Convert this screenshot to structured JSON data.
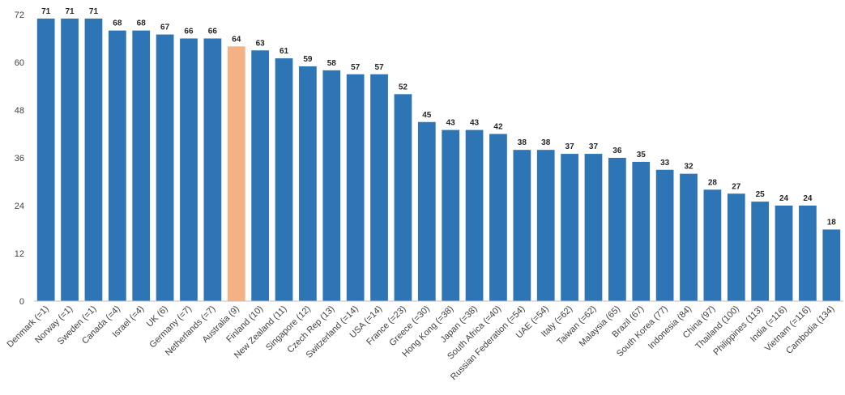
{
  "chart_data": {
    "type": "bar",
    "categories": [
      "Denmark (=1)",
      "Norway (=1)",
      "Sweden (=1)",
      "Canada (=4)",
      "Israel (=4)",
      "UK (6)",
      "Germany (=7)",
      "Netherlands (=7)",
      "Australia (9)",
      "Finland (10)",
      "New Zealand (11)",
      "Singapore (12)",
      "Czech Rep (13)",
      "Switzerland (=14)",
      "USA (=14)",
      "France (=23)",
      "Greece (=30)",
      "Hong Kong (=38)",
      "Japan (=38)",
      "South Africa (=40)",
      "Russian Federation (=54)",
      "UAE (=54)",
      "Italy (=62)",
      "Taiwan (=62)",
      "Malaysia (65)",
      "Brazil (67)",
      "South Korea (77)",
      "Indonesia (84)",
      "China (97)",
      "Thailand (100)",
      "Philippines (113)",
      "India (=116)",
      "Vietnam (=116)",
      "Cambodia (134)"
    ],
    "values": [
      71,
      71,
      71,
      68,
      68,
      67,
      66,
      66,
      64,
      63,
      61,
      59,
      58,
      57,
      57,
      52,
      45,
      43,
      43,
      42,
      38,
      38,
      37,
      37,
      36,
      35,
      33,
      32,
      28,
      27,
      25,
      24,
      24,
      18
    ],
    "highlight_category": "Australia (9)",
    "yticks": [
      0,
      12,
      24,
      36,
      48,
      60,
      72
    ],
    "ylim": [
      0,
      72
    ],
    "grid": false,
    "title": "",
    "xlabel": "",
    "ylabel": "",
    "colors": {
      "bar": "#2E75B6",
      "highlight_bar": "#F4B183",
      "highlight_label": "#ED7D31",
      "axis": "#BFBFBF"
    }
  }
}
